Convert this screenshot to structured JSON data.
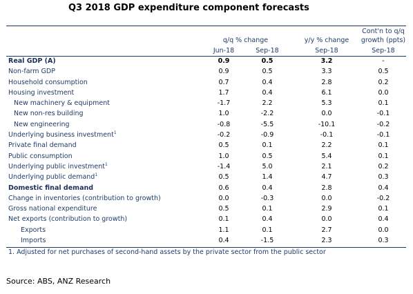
{
  "title": "Q3 2018 GDP expenditure component forecasts",
  "headers": {
    "qq_group": "q/q % change",
    "yy_group": "y/y % change",
    "contrib_line1": "Cont'n to q/q",
    "contrib_line2": "growth (ppts)",
    "col_jun": "Jun-18",
    "col_sep_qq": "Sep-18",
    "col_sep_yy": "Sep-18",
    "col_sep_contrib": "Sep-18"
  },
  "rows": [
    {
      "label": "Real GDP (A)",
      "sup": "",
      "indent": 0,
      "bold": true,
      "jun": "0.9",
      "sep_qq": "0.5",
      "sep_yy": "3.2",
      "contrib": "-"
    },
    {
      "label": "Non-farm GDP",
      "sup": "",
      "indent": 0,
      "bold": false,
      "jun": "0.9",
      "sep_qq": "0.5",
      "sep_yy": "3.3",
      "contrib": "0.5"
    },
    {
      "label": "Household consumption",
      "sup": "",
      "indent": 0,
      "bold": false,
      "jun": "0.7",
      "sep_qq": "0.4",
      "sep_yy": "2.8",
      "contrib": "0.2"
    },
    {
      "label": "Housing investment",
      "sup": "",
      "indent": 0,
      "bold": false,
      "jun": "1.7",
      "sep_qq": "0.4",
      "sep_yy": "6.1",
      "contrib": "0.0"
    },
    {
      "label": "New machinery & equipment",
      "sup": "",
      "indent": 1,
      "bold": false,
      "jun": "-1.7",
      "sep_qq": "2.2",
      "sep_yy": "5.3",
      "contrib": "0.1"
    },
    {
      "label": "New non-res building",
      "sup": "",
      "indent": 1,
      "bold": false,
      "jun": "1.0",
      "sep_qq": "-2.2",
      "sep_yy": "0.0",
      "contrib": "-0.1"
    },
    {
      "label": "New engineering",
      "sup": "",
      "indent": 1,
      "bold": false,
      "jun": "-0.8",
      "sep_qq": "-5.5",
      "sep_yy": "-10.1",
      "contrib": "-0.2"
    },
    {
      "label": "Underlying business investment",
      "sup": "1",
      "indent": 0,
      "bold": false,
      "jun": "-0.2",
      "sep_qq": "-0.9",
      "sep_yy": "-0.1",
      "contrib": "-0.1"
    },
    {
      "label": "Private final demand",
      "sup": "",
      "indent": 0,
      "bold": false,
      "jun": "0.5",
      "sep_qq": "0.1",
      "sep_yy": "2.2",
      "contrib": "0.1"
    },
    {
      "label": "Public consumption",
      "sup": "",
      "indent": 0,
      "bold": false,
      "jun": "1.0",
      "sep_qq": "0.5",
      "sep_yy": "5.4",
      "contrib": "0.1"
    },
    {
      "label": "Underlying public investment",
      "sup": "1",
      "indent": 0,
      "bold": false,
      "jun": "-1.4",
      "sep_qq": "5.0",
      "sep_yy": "2.1",
      "contrib": "0.2"
    },
    {
      "label": "Underlying public demand",
      "sup": "1",
      "indent": 0,
      "bold": false,
      "jun": "0.5",
      "sep_qq": "1.4",
      "sep_yy": "4.7",
      "contrib": "0.3"
    },
    {
      "label": "Domestic final demand",
      "sup": "",
      "indent": 0,
      "bold": true,
      "jun": "0.6",
      "sep_qq": "0.4",
      "sep_yy": "2.8",
      "contrib": "0.4"
    },
    {
      "label": "Change in inventories (contribution to growth)",
      "sup": "",
      "indent": 0,
      "bold": false,
      "jun": "0.0",
      "sep_qq": "-0.3",
      "sep_yy": "0.0",
      "contrib": "-0.2"
    },
    {
      "label": "Gross national expenditure",
      "sup": "",
      "indent": 0,
      "bold": false,
      "jun": "0.5",
      "sep_qq": "0.1",
      "sep_yy": "2.9",
      "contrib": "0.1"
    },
    {
      "label": "Net exports (contribution to growth)",
      "sup": "",
      "indent": 0,
      "bold": false,
      "jun": "0.1",
      "sep_qq": "0.4",
      "sep_yy": "0.0",
      "contrib": "0.4"
    },
    {
      "label": "Exports",
      "sup": "",
      "indent": 2,
      "bold": false,
      "jun": "1.1",
      "sep_qq": "0.1",
      "sep_yy": "2.7",
      "contrib": "0.0"
    },
    {
      "label": "Imports",
      "sup": "",
      "indent": 2,
      "bold": false,
      "jun": "0.4",
      "sep_qq": "-1.5",
      "sep_yy": "2.3",
      "contrib": "0.3"
    }
  ],
  "footnote": "1. Adjusted for net purchases of second-hand assets by the private sector from the public sector",
  "source": "Source: ABS, ANZ Research"
}
